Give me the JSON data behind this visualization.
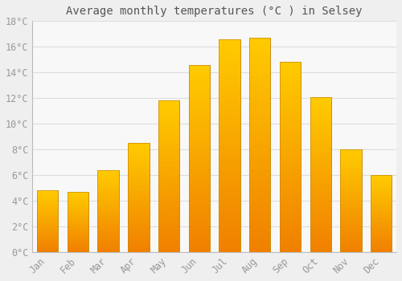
{
  "title": "Average monthly temperatures (°C ) in Selsey",
  "months": [
    "Jan",
    "Feb",
    "Mar",
    "Apr",
    "May",
    "Jun",
    "Jul",
    "Aug",
    "Sep",
    "Oct",
    "Nov",
    "Dec"
  ],
  "values": [
    4.8,
    4.7,
    6.4,
    8.5,
    11.8,
    14.6,
    16.6,
    16.7,
    14.8,
    12.1,
    8.0,
    6.0
  ],
  "bar_color_top": "#FFCC00",
  "bar_color_bottom": "#F08000",
  "bar_edge_color": "#C8880A",
  "background_color": "#EFEFEF",
  "plot_bg_color": "#F8F8F8",
  "grid_color": "#DDDDDD",
  "text_color": "#999999",
  "title_color": "#555555",
  "ylim": [
    0,
    18
  ],
  "yticks": [
    0,
    2,
    4,
    6,
    8,
    10,
    12,
    14,
    16,
    18
  ],
  "title_fontsize": 10,
  "tick_fontsize": 8.5
}
